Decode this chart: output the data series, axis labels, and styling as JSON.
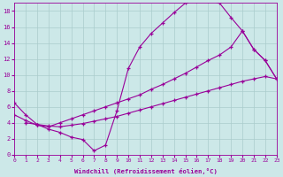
{
  "background_color": "#cce8e8",
  "grid_color": "#aacccc",
  "line_color": "#990099",
  "xlabel": "Windchill (Refroidissement éolien,°C)",
  "xlim": [
    0,
    23
  ],
  "ylim": [
    0,
    19
  ],
  "yticks": [
    0,
    2,
    4,
    6,
    8,
    10,
    12,
    14,
    16,
    18
  ],
  "xticks": [
    0,
    1,
    2,
    3,
    4,
    5,
    6,
    7,
    8,
    9,
    10,
    11,
    12,
    13,
    14,
    15,
    16,
    17,
    18,
    19,
    20,
    21,
    22,
    23
  ],
  "curve1_x": [
    0,
    1,
    2,
    3,
    4,
    5,
    6,
    7,
    8,
    9,
    10,
    11,
    12,
    13,
    14,
    15,
    16,
    17,
    18,
    19,
    20,
    21,
    22,
    23
  ],
  "curve1_y": [
    6.5,
    5.0,
    3.8,
    3.2,
    2.8,
    2.2,
    1.9,
    0.5,
    1.2,
    5.5,
    10.8,
    13.5,
    15.2,
    16.5,
    17.8,
    19.0,
    19.3,
    19.3,
    19.0,
    17.2,
    15.5,
    13.2,
    11.8,
    9.5
  ],
  "curve2_x": [
    0,
    1,
    2,
    3,
    4,
    5,
    6,
    7,
    8,
    9,
    10,
    11,
    12,
    13,
    14,
    15,
    16,
    17,
    18,
    19,
    20,
    21,
    22,
    23
  ],
  "curve2_y": [
    5.0,
    4.3,
    3.7,
    3.5,
    4.0,
    4.5,
    5.0,
    5.5,
    6.0,
    6.5,
    7.0,
    7.5,
    8.2,
    8.8,
    9.5,
    10.2,
    11.0,
    11.8,
    12.5,
    13.5,
    15.5,
    13.2,
    11.8,
    9.5
  ],
  "curve3_x": [
    1,
    2,
    3,
    4,
    5,
    6,
    7,
    8,
    9,
    10,
    11,
    12,
    13,
    14,
    15,
    16,
    17,
    18,
    19,
    20,
    21,
    22,
    23
  ],
  "curve3_y": [
    4.0,
    3.8,
    3.6,
    3.5,
    3.7,
    3.9,
    4.2,
    4.5,
    4.8,
    5.2,
    5.6,
    6.0,
    6.4,
    6.8,
    7.2,
    7.6,
    8.0,
    8.4,
    8.8,
    9.2,
    9.5,
    9.8,
    9.5
  ]
}
